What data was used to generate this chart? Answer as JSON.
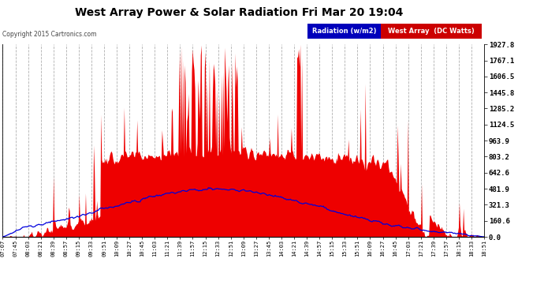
{
  "title": "West Array Power & Solar Radiation Fri Mar 20 19:04",
  "copyright": "Copyright 2015 Cartronics.com",
  "legend_radiation": "Radiation (w/m2)",
  "legend_west": "West Array  (DC Watts)",
  "y_max": 1927.8,
  "y_min": 0.0,
  "y_ticks": [
    0.0,
    160.6,
    321.3,
    481.9,
    642.6,
    803.2,
    963.9,
    1124.5,
    1285.2,
    1445.8,
    1606.5,
    1767.1,
    1927.8
  ],
  "background_color": "#ffffff",
  "plot_bg": "#ffffff",
  "grid_color": "#b0b0b0",
  "red_color": "#ee0000",
  "blue_color": "#0000dd",
  "x_tick_labels": [
    "07:07",
    "07:45",
    "08:03",
    "08:21",
    "08:39",
    "08:57",
    "09:15",
    "09:33",
    "09:51",
    "10:09",
    "10:27",
    "10:45",
    "11:03",
    "11:21",
    "11:39",
    "11:57",
    "12:15",
    "12:33",
    "12:51",
    "13:09",
    "13:27",
    "13:45",
    "14:03",
    "14:21",
    "14:39",
    "14:57",
    "15:15",
    "15:33",
    "15:51",
    "16:09",
    "16:27",
    "16:45",
    "17:03",
    "17:21",
    "17:39",
    "17:57",
    "18:15",
    "18:33",
    "18:51"
  ]
}
